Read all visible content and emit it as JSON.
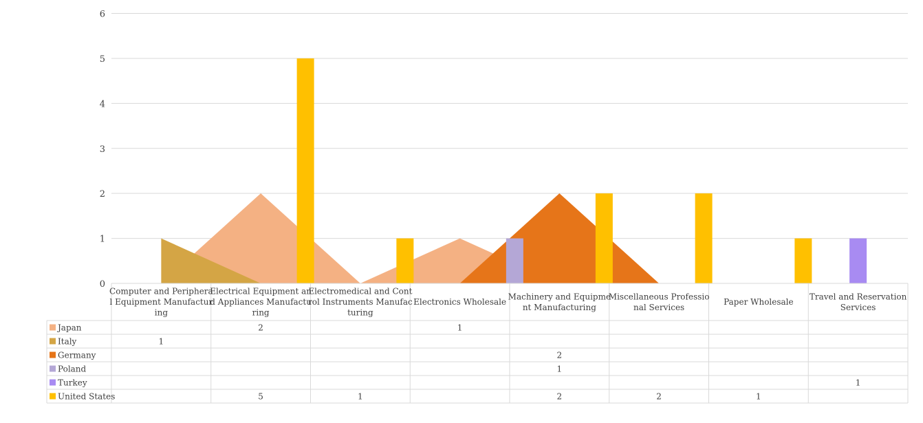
{
  "chart_data": {
    "type": "bar",
    "categories": [
      [
        "Computer and Periphera",
        "l Equipment Manufactur",
        "ing"
      ],
      [
        "Electrical Equipment an",
        "d Appliances Manufactu",
        "ring"
      ],
      [
        "Electromedical and Cont",
        "rol Instruments Manufac",
        "turing"
      ],
      [
        "Electronics Wholesale"
      ],
      [
        "Machinery and Equipme",
        "nt Manufacturing"
      ],
      [
        "Miscellaneous Professio",
        "nal Services"
      ],
      [
        "Paper Wholesale"
      ],
      [
        "Travel and Reservation",
        "Services"
      ]
    ],
    "series": [
      {
        "name": "Japan",
        "render": "area",
        "color": "#F4B183",
        "values": [
          null,
          2,
          null,
          1,
          null,
          null,
          null,
          null
        ]
      },
      {
        "name": "Italy",
        "render": "area",
        "color": "#D4A545",
        "values": [
          1,
          null,
          null,
          null,
          null,
          null,
          null,
          null
        ]
      },
      {
        "name": "Germany",
        "render": "area",
        "color": "#E67519",
        "values": [
          null,
          null,
          null,
          null,
          2,
          null,
          null,
          null
        ]
      },
      {
        "name": "Poland",
        "render": "bar",
        "color": "#B4A7D6",
        "values": [
          null,
          null,
          null,
          null,
          1,
          null,
          null,
          null
        ]
      },
      {
        "name": "Turkey",
        "render": "bar",
        "color": "#A88BF2",
        "values": [
          null,
          null,
          null,
          null,
          null,
          null,
          null,
          1
        ]
      },
      {
        "name": "United States",
        "render": "bar",
        "color": "#FFC000",
        "values": [
          null,
          5,
          1,
          null,
          2,
          2,
          1,
          null
        ]
      }
    ],
    "yticks": [
      "0",
      "1",
      "2",
      "3",
      "4",
      "5",
      "6"
    ],
    "ylim": [
      0,
      6
    ],
    "grid": true,
    "legend": "data-table"
  }
}
